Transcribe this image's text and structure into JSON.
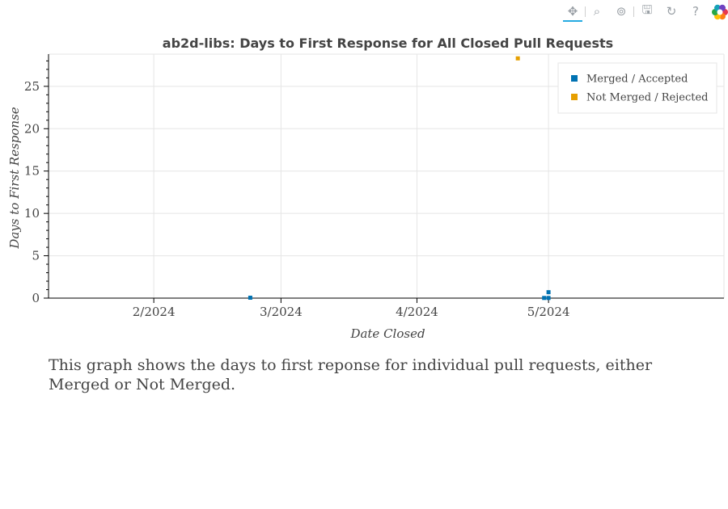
{
  "toolbar": {
    "tools": [
      {
        "name": "pan-tool-icon",
        "glyph": "✥",
        "active": true
      },
      {
        "name": "box-zoom-tool-icon",
        "glyph": "⌕",
        "active": false
      },
      {
        "name": "wheel-zoom-tool-icon",
        "glyph": "⊚",
        "active": false
      },
      {
        "name": "save-tool-icon",
        "glyph": "🖫",
        "active": false
      },
      {
        "name": "reset-tool-icon",
        "glyph": "↻",
        "active": false
      },
      {
        "name": "help-tool-icon",
        "glyph": "?",
        "active": false
      }
    ],
    "logo": "bokeh-logo-icon"
  },
  "chart_data": {
    "type": "scatter",
    "title": "ab2d-libs: Days to First Response for All Closed Pull Requests",
    "xlabel": "Date Closed",
    "ylabel": "Days to First Response",
    "x_axis_type": "datetime",
    "xlim": [
      "2024-01-08",
      "2024-06-10"
    ],
    "ylim": [
      0,
      28.8
    ],
    "x_ticks": [
      {
        "date": "2024-02-01",
        "label": "2/2024"
      },
      {
        "date": "2024-03-01",
        "label": "3/2024"
      },
      {
        "date": "2024-04-01",
        "label": "4/2024"
      },
      {
        "date": "2024-05-01",
        "label": "5/2024"
      }
    ],
    "y_ticks": [
      0,
      5,
      10,
      15,
      20,
      25
    ],
    "grid": true,
    "legend_position": "top-right",
    "series": [
      {
        "name": "Merged / Accepted",
        "color": "#0072b2",
        "points": [
          {
            "x": "2024-02-23",
            "y": 0.05
          },
          {
            "x": "2024-04-30",
            "y": 0.02
          },
          {
            "x": "2024-05-01",
            "y": 0.02
          },
          {
            "x": "2024-05-01",
            "y": 0.7
          }
        ]
      },
      {
        "name": "Not Merged / Rejected",
        "color": "#e69f00",
        "points": [
          {
            "x": "2024-04-24",
            "y": 28.3
          }
        ]
      }
    ]
  },
  "caption": "This graph shows the days to first reponse for individual pull requests, either Merged or Not Merged."
}
